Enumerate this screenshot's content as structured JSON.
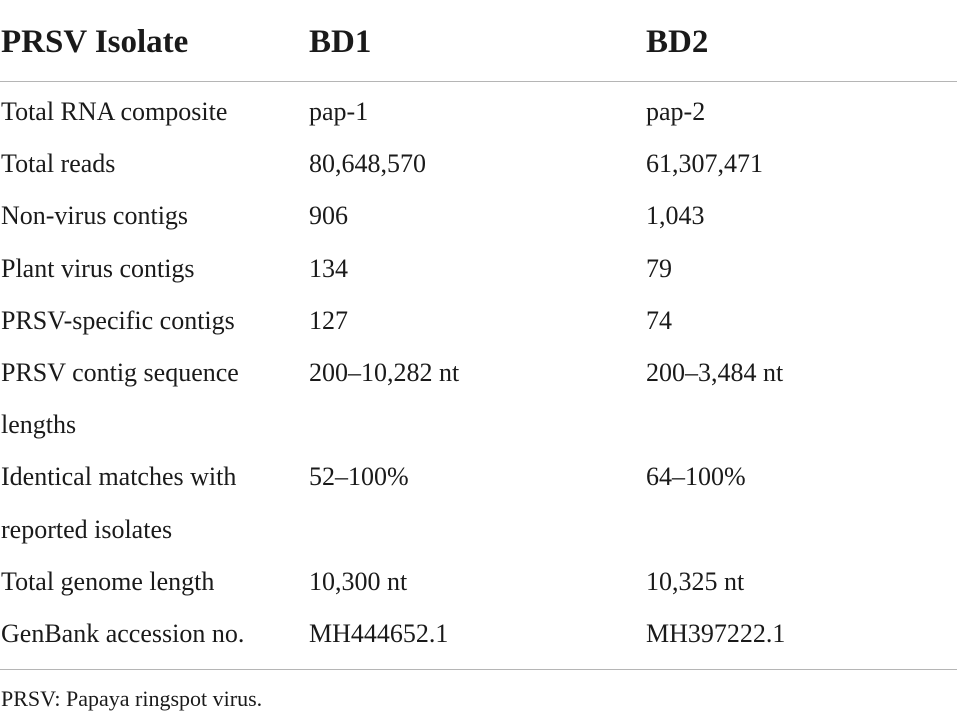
{
  "header": {
    "col1": "PRSV Isolate",
    "col2": "BD1",
    "col3": "BD2"
  },
  "rows": [
    {
      "label": "Total RNA composite",
      "bd1": "pap-1",
      "bd2": "pap-2"
    },
    {
      "label": "Total reads",
      "bd1": "80,648,570",
      "bd2": "61,307,471"
    },
    {
      "label": "Non-virus contigs",
      "bd1": "906",
      "bd2": "1,043"
    },
    {
      "label": "Plant virus contigs",
      "bd1": "134",
      "bd2": "79"
    },
    {
      "label": "PRSV-specific contigs",
      "bd1": "127",
      "bd2": "74"
    },
    {
      "label": "PRSV contig sequence lengths",
      "bd1": "200–10,282 nt",
      "bd2": "200–3,484 nt"
    },
    {
      "label": "Identical matches with reported isolates",
      "bd1": "52–100%",
      "bd2": "64–100%"
    },
    {
      "label": "Total genome length",
      "bd1": "10,300 nt",
      "bd2": "10,325 nt"
    },
    {
      "label": "GenBank accession no.",
      "bd1": "MH444652.1",
      "bd2": "MH397222.1"
    }
  ],
  "footnote": "PRSV: Papaya ringspot virus."
}
